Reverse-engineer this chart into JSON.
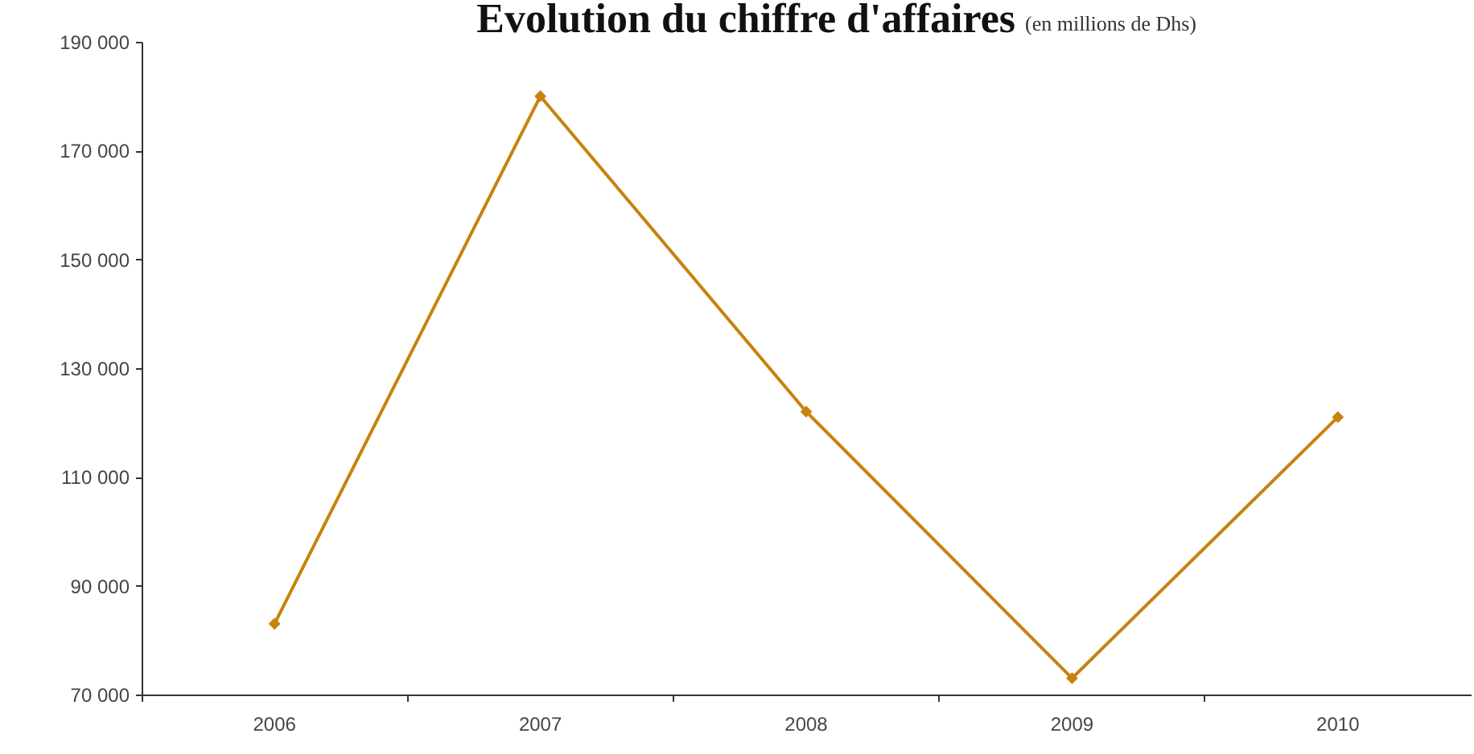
{
  "chart_data": {
    "type": "line",
    "title": "Evolution du chiffre d'affaires",
    "subtitle": "(en millions de Dhs)",
    "categories": [
      "2006",
      "2007",
      "2008",
      "2009",
      "2010"
    ],
    "values": [
      83000,
      180000,
      122000,
      73000,
      121000
    ],
    "color": "#c8820e",
    "ylim": [
      70000,
      190000
    ],
    "yticks": [
      {
        "value": 70000,
        "label": "70 000"
      },
      {
        "value": 90000,
        "label": "90 000"
      },
      {
        "value": 110000,
        "label": "110 000"
      },
      {
        "value": 130000,
        "label": "130 000"
      },
      {
        "value": 150000,
        "label": "150 000"
      },
      {
        "value": 170000,
        "label": "170 000"
      },
      {
        "value": 190000,
        "label": "190 000"
      }
    ],
    "marker": "diamond",
    "line_style": "solid"
  }
}
